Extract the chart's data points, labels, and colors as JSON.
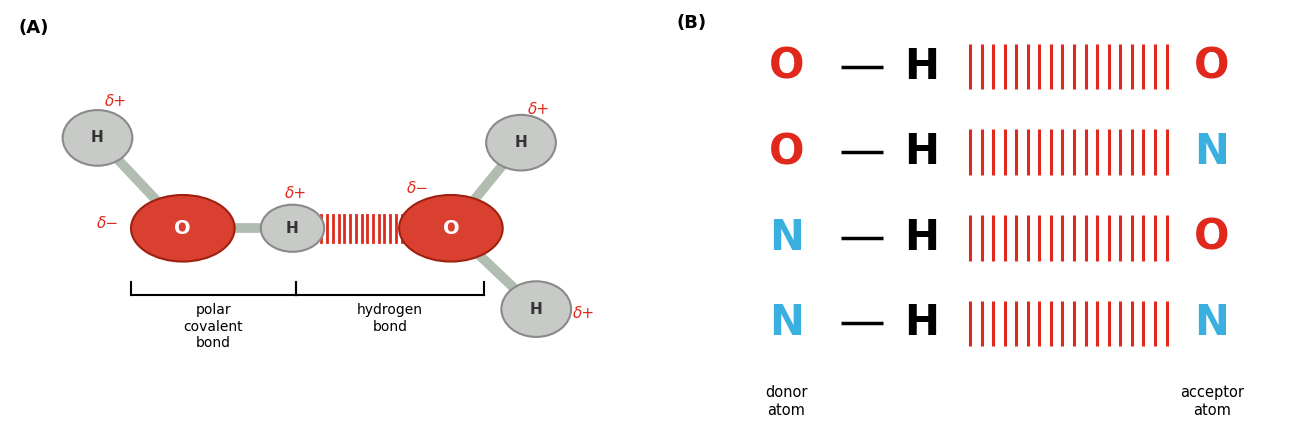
{
  "bg_color": "#ffffff",
  "label_A": "(A)",
  "label_B": "(B)",
  "red_color": "#e0291c",
  "blue_color": "#3ab0e0",
  "black_color": "#1a1a1a",
  "gray_atom_face": "#c8cac8",
  "gray_atom_edge": "#8a8a8a",
  "red_atom_face_outer": "#d94030",
  "red_atom_face_inner": "#e85040",
  "red_atom_edge": "#a02010",
  "bond_color": "#b0bdb0",
  "hbond_color": "#e0291c",
  "delta_plus": "δ+",
  "delta_minus": "δ−",
  "polar_label": "polar\ncovalent\nbond",
  "hbond_label": "hydrogen\nbond",
  "donor_label": "donor\natom",
  "acceptor_label": "acceptor\natom",
  "rows_B": [
    {
      "donor": "O",
      "donor_color": "#e0291c",
      "acceptor": "O",
      "acceptor_color": "#e0291c"
    },
    {
      "donor": "O",
      "donor_color": "#e0291c",
      "acceptor": "N",
      "acceptor_color": "#3ab0e0"
    },
    {
      "donor": "N",
      "donor_color": "#3ab0e0",
      "acceptor": "O",
      "acceptor_color": "#e0291c"
    },
    {
      "donor": "N",
      "donor_color": "#3ab0e0",
      "acceptor": "N",
      "acceptor_color": "#3ab0e0"
    }
  ],
  "A_xlim": [
    0,
    11
  ],
  "A_ylim": [
    0,
    9
  ],
  "B_xlim": [
    0,
    10
  ],
  "B_ylim": [
    0,
    9
  ]
}
